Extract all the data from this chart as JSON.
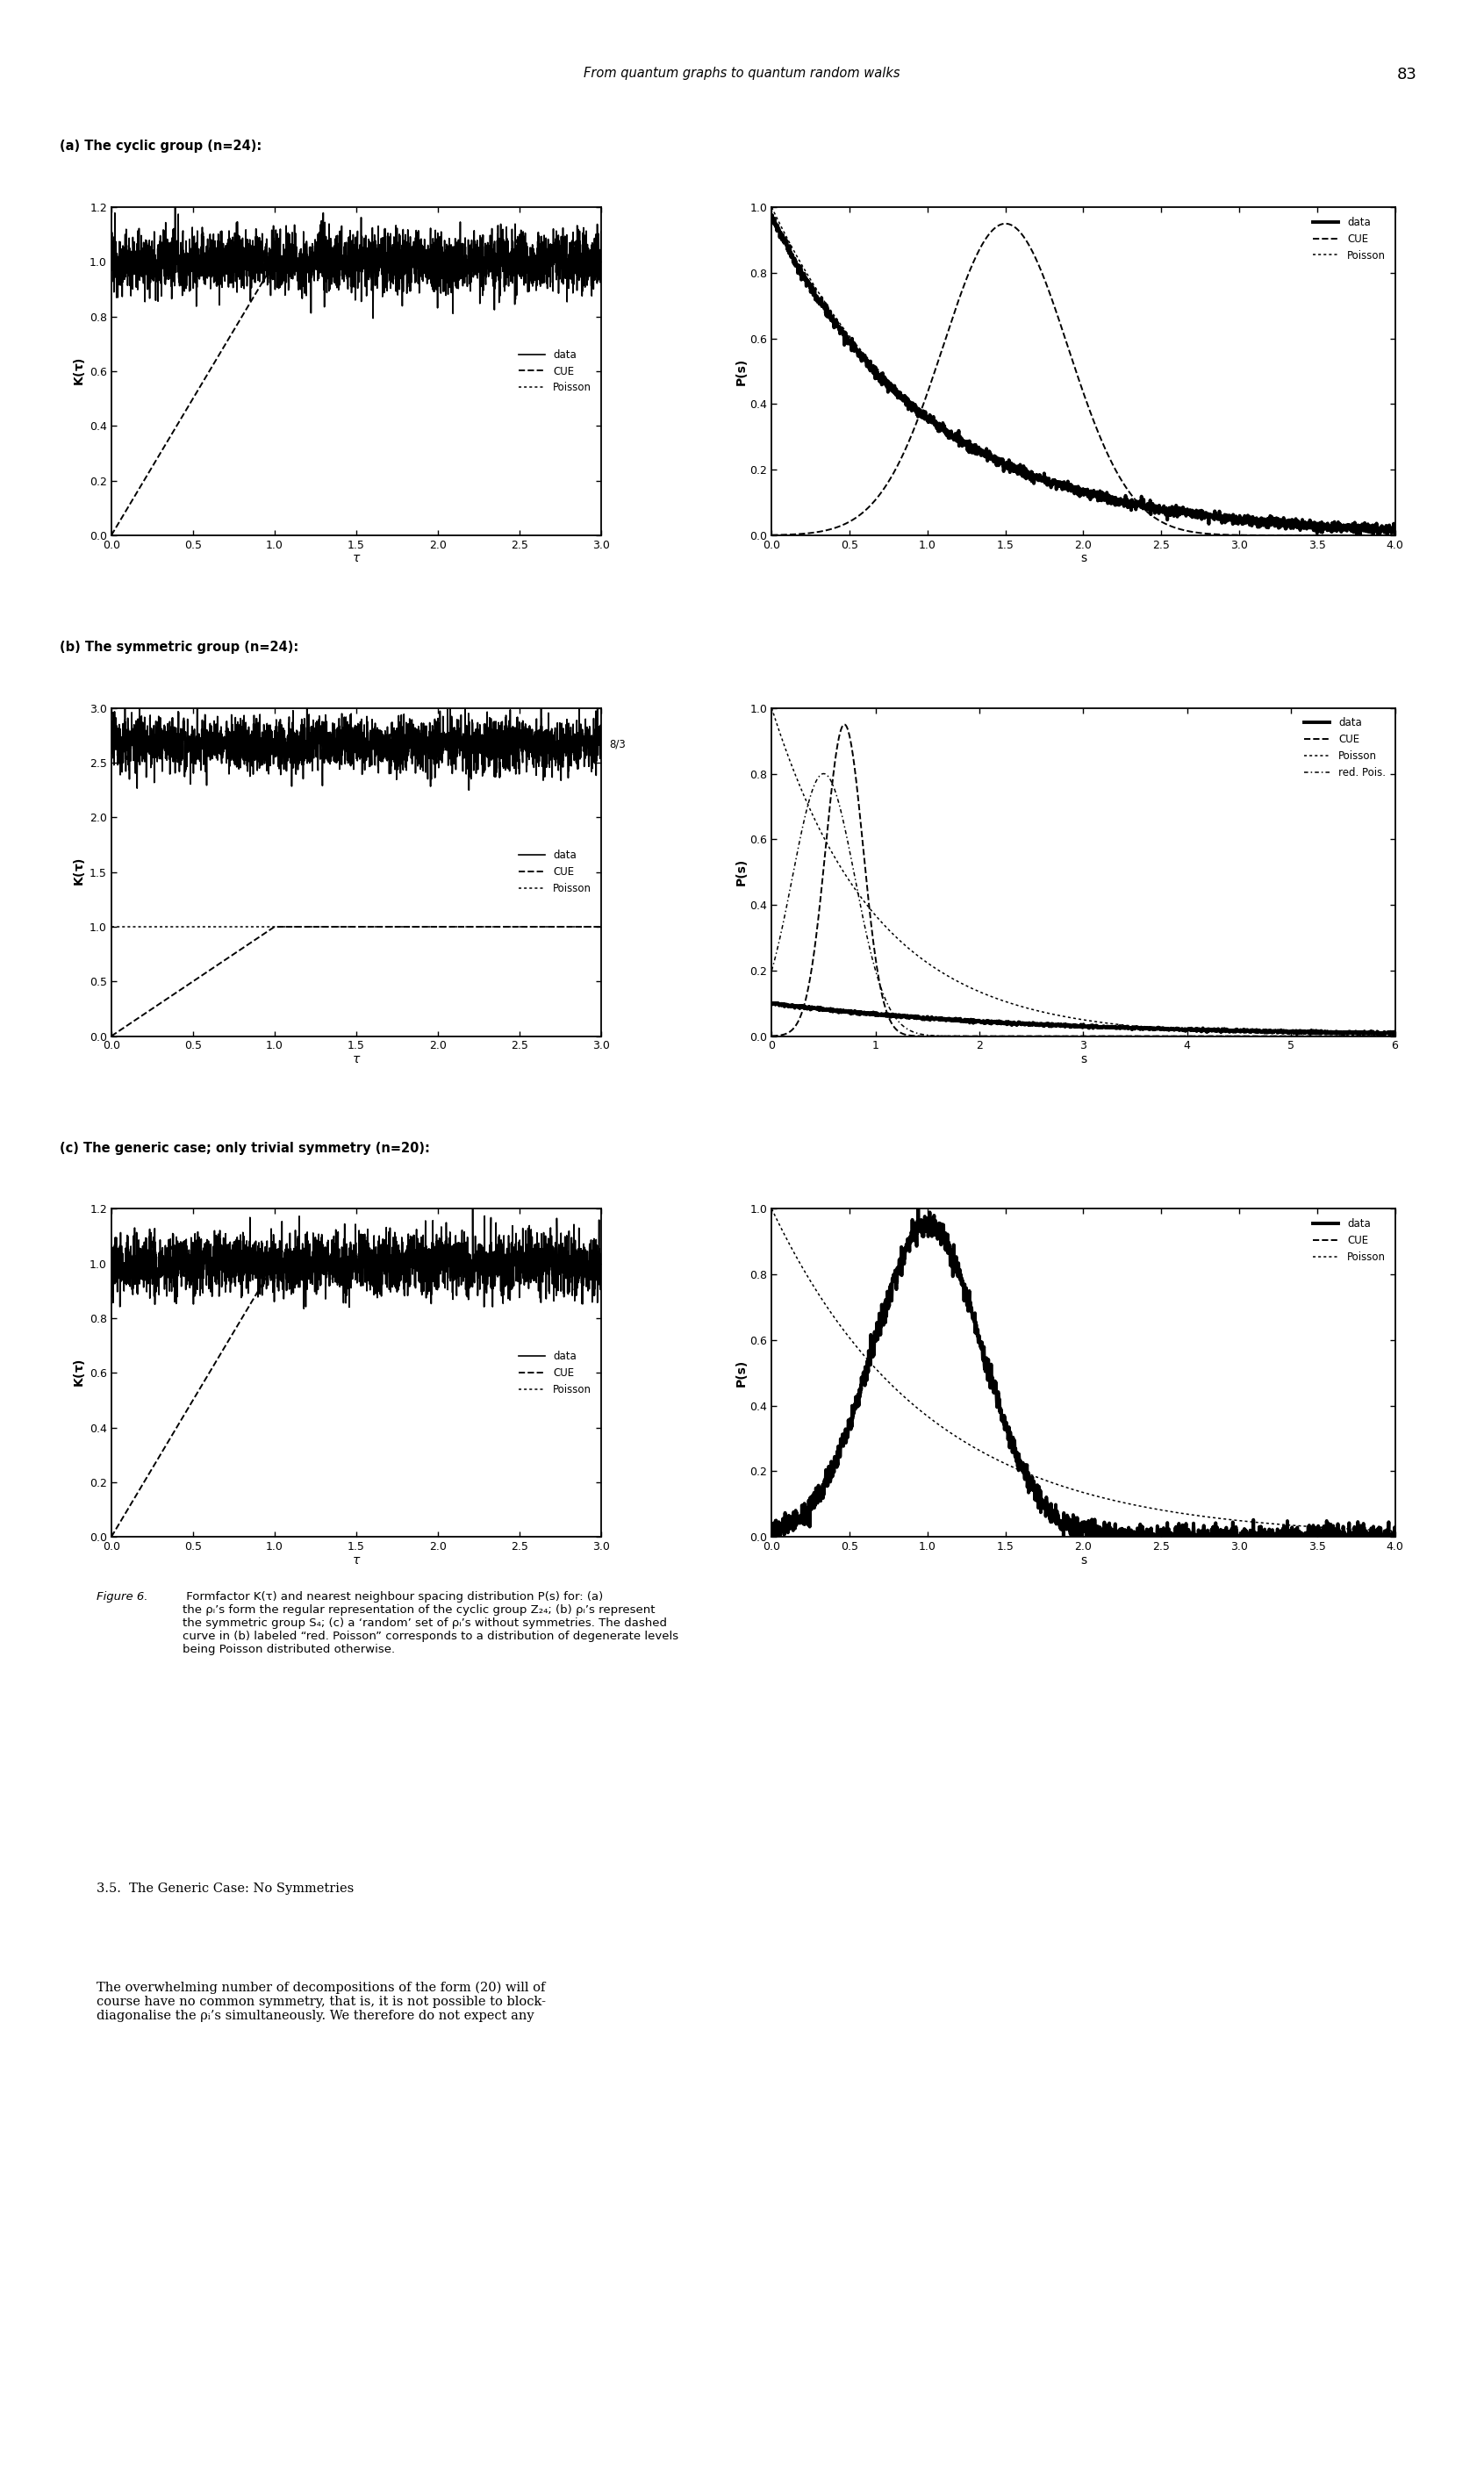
{
  "header": "From quantum graphs to quantum random walks",
  "page_number": "83",
  "panels": [
    {
      "label": "(a) The cyclic group (n=24):",
      "K_ylim": [
        0,
        1.2
      ],
      "K_yticks": [
        0,
        0.2,
        0.4,
        0.6,
        0.8,
        1.0,
        1.2
      ],
      "K_xlim": [
        0,
        3
      ],
      "K_xticks": [
        0,
        0.5,
        1,
        1.5,
        2,
        2.5,
        3
      ],
      "K_data_level": 1.0,
      "K_noise_amp": 0.055,
      "K_annotation": null,
      "P_ylim": [
        0,
        1
      ],
      "P_xlim": [
        0,
        4
      ],
      "P_xticks": [
        0,
        0.5,
        1,
        1.5,
        2,
        2.5,
        3,
        3.5,
        4
      ],
      "P_yticks": [
        0,
        0.2,
        0.4,
        0.6,
        0.8,
        1.0
      ],
      "P_has_red_pois": false,
      "P_data_type": "cyclic"
    },
    {
      "label": "(b) The symmetric group (n=24):",
      "K_ylim": [
        0,
        3
      ],
      "K_yticks": [
        0,
        0.5,
        1.0,
        1.5,
        2.0,
        2.5,
        3.0
      ],
      "K_xlim": [
        0,
        3
      ],
      "K_xticks": [
        0,
        0.5,
        1,
        1.5,
        2,
        2.5,
        3
      ],
      "K_data_level": 2.667,
      "K_noise_amp": 0.12,
      "K_annotation": "8/3",
      "P_ylim": [
        0,
        1
      ],
      "P_xlim": [
        0,
        6
      ],
      "P_xticks": [
        0,
        1,
        2,
        3,
        4,
        5,
        6
      ],
      "P_yticks": [
        0,
        0.2,
        0.4,
        0.6,
        0.8,
        1.0
      ],
      "P_has_red_pois": true,
      "P_data_type": "symmetric"
    },
    {
      "label": "(c) The generic case; only trivial symmetry (n=20):",
      "K_ylim": [
        0,
        1.2
      ],
      "K_yticks": [
        0,
        0.2,
        0.4,
        0.6,
        0.8,
        1.0,
        1.2
      ],
      "K_xlim": [
        0,
        3
      ],
      "K_xticks": [
        0,
        0.5,
        1,
        1.5,
        2,
        2.5,
        3
      ],
      "K_data_level": 1.0,
      "K_noise_amp": 0.055,
      "K_annotation": null,
      "P_ylim": [
        0,
        1
      ],
      "P_xlim": [
        0,
        4
      ],
      "P_xticks": [
        0,
        0.5,
        1,
        1.5,
        2,
        2.5,
        3,
        3.5,
        4
      ],
      "P_yticks": [
        0,
        0.2,
        0.4,
        0.6,
        0.8,
        1.0
      ],
      "P_has_red_pois": false,
      "P_data_type": "generic"
    }
  ],
  "caption_italic": "Figure 6.",
  "caption_normal": " Formfactor K(τ) and nearest neighbour spacing distribution P(s) for: (a)\nthe ρᵢ’s form the regular representation of the cyclic group Z₂₄; (b) ρᵢ’s represent\nthe symmetric group S₄; (c) a ‘random’ set of ρᵢ’s without symmetries. The dashed\ncurve in (b) labeled “red. Poisson” corresponds to a distribution of degenerate levels\nbeing Poisson distributed otherwise.",
  "section_heading": "3.5.  The Generic Case: No Symmetries",
  "section_text_line1": "The overwhelming number of decompositions of the form (20) will of",
  "section_text_line2": "course have no common symmetry, that is, it is not possible to block-",
  "section_text_line3": "diagonalise the ρᵢ’s simultaneously. We therefore do not expect any"
}
